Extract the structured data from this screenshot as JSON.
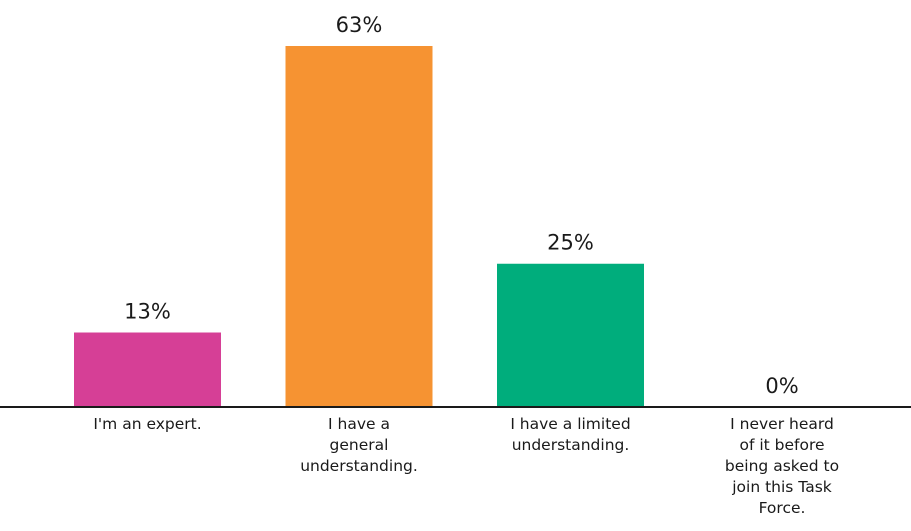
{
  "chart_data": {
    "type": "bar",
    "categories": [
      [
        "I'm an expert."
      ],
      [
        "I have a",
        "general",
        "understanding."
      ],
      [
        "I have a limited",
        "understanding."
      ],
      [
        "I never heard",
        "of it before",
        "being asked to",
        "join this Task",
        "Force."
      ]
    ],
    "values": [
      13,
      63,
      25,
      0
    ],
    "value_labels": [
      "13%",
      "63%",
      "25%",
      "0%"
    ],
    "colors": [
      "#d63f96",
      "#f69332",
      "#00ad7c",
      "#ffffff"
    ],
    "ylim": [
      0,
      63
    ],
    "grid": false,
    "legend": "none",
    "title": "",
    "xlabel": "",
    "ylabel": ""
  }
}
